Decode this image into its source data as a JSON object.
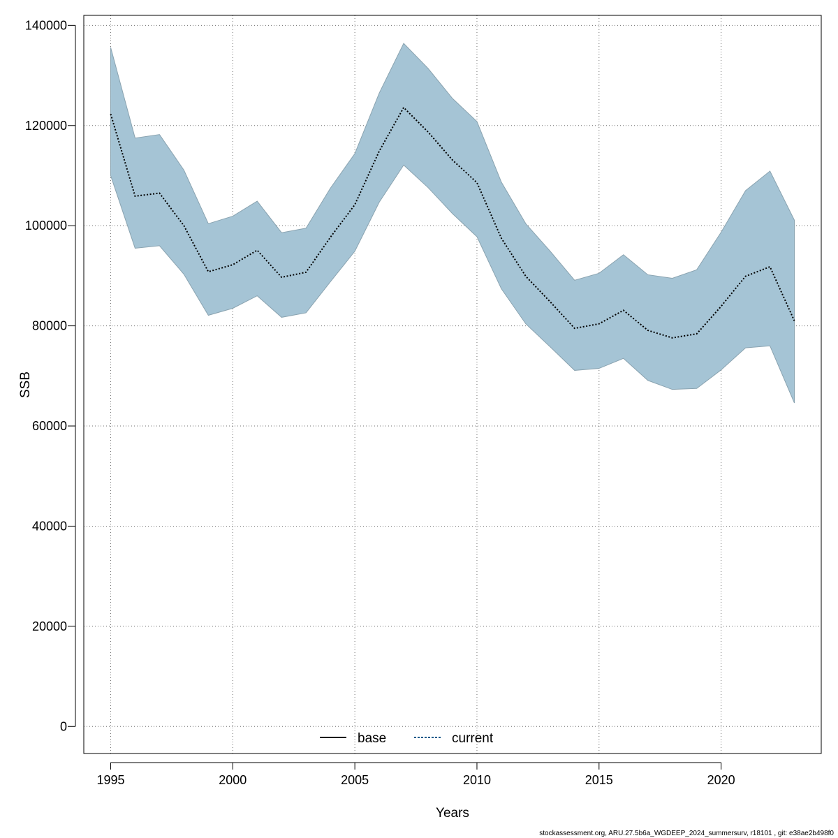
{
  "chart_data": {
    "type": "line",
    "xlabel": "Years",
    "ylabel": "SSB",
    "xlim": [
      1993.9,
      2024.1
    ],
    "ylim": [
      -5400,
      142000
    ],
    "x_ticks": [
      1995,
      2000,
      2005,
      2010,
      2015,
      2020
    ],
    "y_ticks": [
      0,
      20000,
      40000,
      60000,
      80000,
      100000,
      120000,
      140000
    ],
    "grid": true,
    "legend_position": "bottom-center",
    "x": [
      1995,
      1996,
      1997,
      1998,
      1999,
      2000,
      2001,
      2002,
      2003,
      2004,
      2005,
      2006,
      2007,
      2008,
      2009,
      2010,
      2011,
      2012,
      2013,
      2014,
      2015,
      2016,
      2017,
      2018,
      2019,
      2020,
      2021,
      2022,
      2023
    ],
    "series": [
      {
        "name": "current",
        "style": "dotted",
        "values": [
          122300,
          105900,
          106500,
          100000,
          90800,
          92200,
          95100,
          89700,
          90700,
          97700,
          104200,
          114900,
          123600,
          118700,
          113100,
          108600,
          97500,
          89900,
          84800,
          79500,
          80400,
          83100,
          79100,
          77600,
          78400,
          83900,
          89900,
          91800,
          81000
        ],
        "lower": [
          110000,
          95500,
          96000,
          90300,
          82100,
          83500,
          86000,
          81700,
          82600,
          88800,
          94900,
          104700,
          112100,
          107600,
          102400,
          97800,
          87400,
          80400,
          75800,
          71100,
          71500,
          73500,
          69100,
          67300,
          67500,
          71200,
          75600,
          76000,
          64600
        ],
        "upper": [
          135600,
          117500,
          118200,
          111100,
          100400,
          101900,
          104900,
          98600,
          99500,
          107500,
          114400,
          126500,
          136400,
          131400,
          125400,
          120800,
          108700,
          100400,
          94900,
          89100,
          90500,
          94200,
          90200,
          89500,
          91200,
          98700,
          107000,
          110900,
          101100
        ]
      }
    ],
    "legend": [
      {
        "label": "base",
        "style": "solid",
        "color": "#000000"
      },
      {
        "label": "current",
        "style": "dotted",
        "color": "#0a5a8a"
      }
    ],
    "colors": {
      "band_fill": "#a5c4d5",
      "band_stroke": "#8aa3b0",
      "line": "#000000",
      "grid": "#6f6f6f"
    }
  },
  "footer": "stockassessment.org, ARU.27.5b6a_WGDEEP_2024_summersurv, r18101 , git: e38ae2b498f0"
}
